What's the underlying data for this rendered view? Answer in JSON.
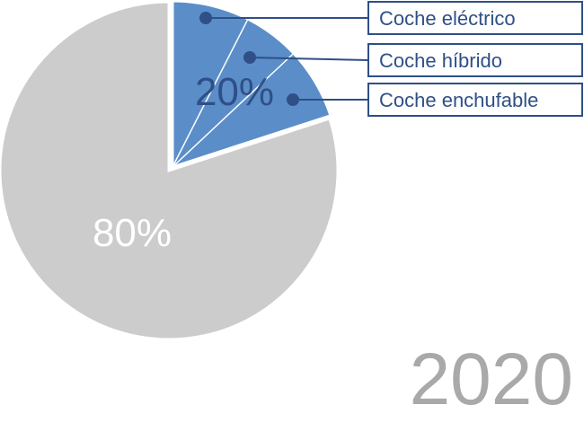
{
  "chart_data": {
    "type": "pie",
    "title": "2020",
    "slices": [
      {
        "label": "",
        "value": 80,
        "color": "#cccccc",
        "display": "80%"
      },
      {
        "label": "",
        "value": 20,
        "color": "#5b8ec8",
        "display": "20%",
        "subslices": [
          {
            "label": "Coche eléctrico",
            "value": 7.5
          },
          {
            "label": "Coche híbrido",
            "value": 5.5
          },
          {
            "label": "Coche enchufable",
            "value": 7.0
          }
        ]
      }
    ],
    "colors": {
      "gray": "#cccccc",
      "blue": "#5b8ec8",
      "blue_dark_text": "#2f4f86",
      "callout": "#2f4f86",
      "year": "#a9a9a9"
    }
  }
}
